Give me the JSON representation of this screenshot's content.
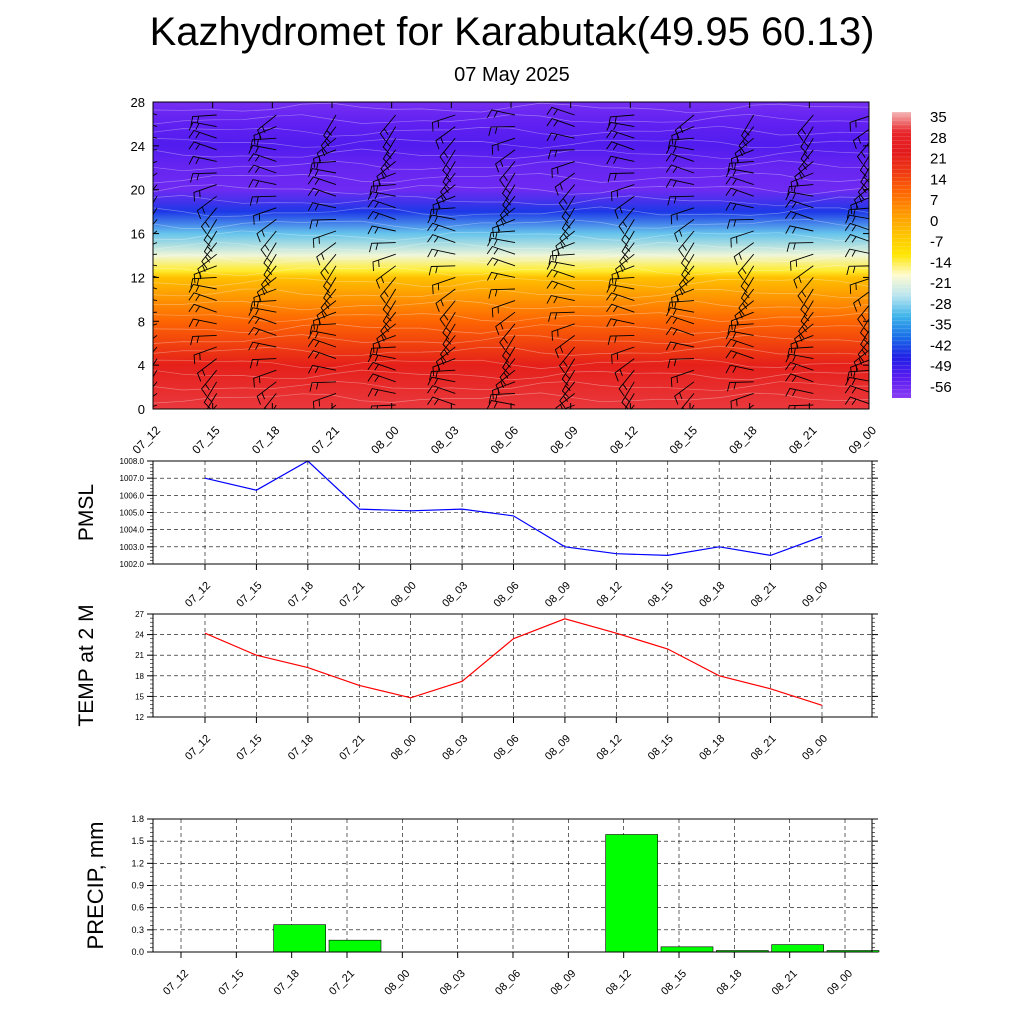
{
  "header": {
    "title": "Kazhydromet for Karabutak(49.95 60.13)",
    "date": "07 May 2025"
  },
  "time_labels": [
    "07_12",
    "07_15",
    "07_18",
    "07_21",
    "08_00",
    "08_03",
    "08_06",
    "08_09",
    "08_12",
    "08_15",
    "08_18",
    "08_21",
    "09_00"
  ],
  "chart_data": [
    {
      "type": "heatmap",
      "y_ticks": [
        "0",
        "4",
        "8",
        "12",
        "16",
        "20",
        "24",
        "28"
      ],
      "ylim": [
        0,
        28
      ],
      "legend_labels": [
        "35",
        "28",
        "21",
        "14",
        "7",
        "0",
        "-7",
        "-14",
        "-21",
        "-28",
        "-35",
        "-42",
        "-49",
        "-56"
      ],
      "colormap_stops": [
        "#f4b6b6",
        "#e8252a",
        "#e31a1c",
        "#f03c12",
        "#ff6a00",
        "#ff9a00",
        "#ffc400",
        "#ffe600",
        "#fffbd0",
        "#b8e4f0",
        "#3db4ea",
        "#1a70e8",
        "#1f1fe6",
        "#5a1cf0",
        "#8a3cf4"
      ],
      "profile": [
        {
          "level": 0,
          "value": 31
        },
        {
          "level": 4,
          "value": 22
        },
        {
          "level": 8,
          "value": 10
        },
        {
          "level": 12,
          "value": -4
        },
        {
          "level": 12.6,
          "value": -13
        },
        {
          "level": 14,
          "value": -20
        },
        {
          "level": 16,
          "value": -30
        },
        {
          "level": 18,
          "value": -44
        },
        {
          "level": 20,
          "value": -56
        },
        {
          "level": 22,
          "value": -55
        },
        {
          "level": 24,
          "value": -52
        },
        {
          "level": 26,
          "value": -54
        },
        {
          "level": 28,
          "value": -57
        }
      ]
    },
    {
      "type": "line",
      "ylabel": "PMSL",
      "y_ticks": [
        "1002.0",
        "1003.0",
        "1004.0",
        "1005.0",
        "1006.0",
        "1007.0",
        "1008.0"
      ],
      "ylim": [
        1002.0,
        1008.0
      ],
      "color": "#0000ff",
      "values": [
        1007.0,
        1006.3,
        1008.0,
        1005.2,
        1005.1,
        1005.2,
        1004.8,
        1003.0,
        1002.6,
        1002.5,
        1003.0,
        1002.5,
        1003.6
      ]
    },
    {
      "type": "line",
      "ylabel": "TEMP at 2 M",
      "y_ticks": [
        "12",
        "15",
        "18",
        "21",
        "24",
        "27"
      ],
      "ylim": [
        12,
        27
      ],
      "color": "#ff0000",
      "values": [
        24.2,
        21.0,
        19.2,
        16.6,
        14.8,
        17.2,
        23.4,
        26.3,
        24.2,
        21.9,
        18.0,
        16.1,
        13.7
      ]
    },
    {
      "type": "bar",
      "ylabel": "PRECIP, mm",
      "y_ticks": [
        "0.0",
        "0.3",
        "0.6",
        "0.9",
        "1.2",
        "1.5",
        "1.8"
      ],
      "ylim": [
        0,
        1.8
      ],
      "color": "#00ff00",
      "values": [
        0,
        0,
        0.37,
        0.16,
        0,
        0,
        0,
        0,
        1.59,
        0.07,
        0.02,
        0.1,
        0.02
      ]
    }
  ]
}
